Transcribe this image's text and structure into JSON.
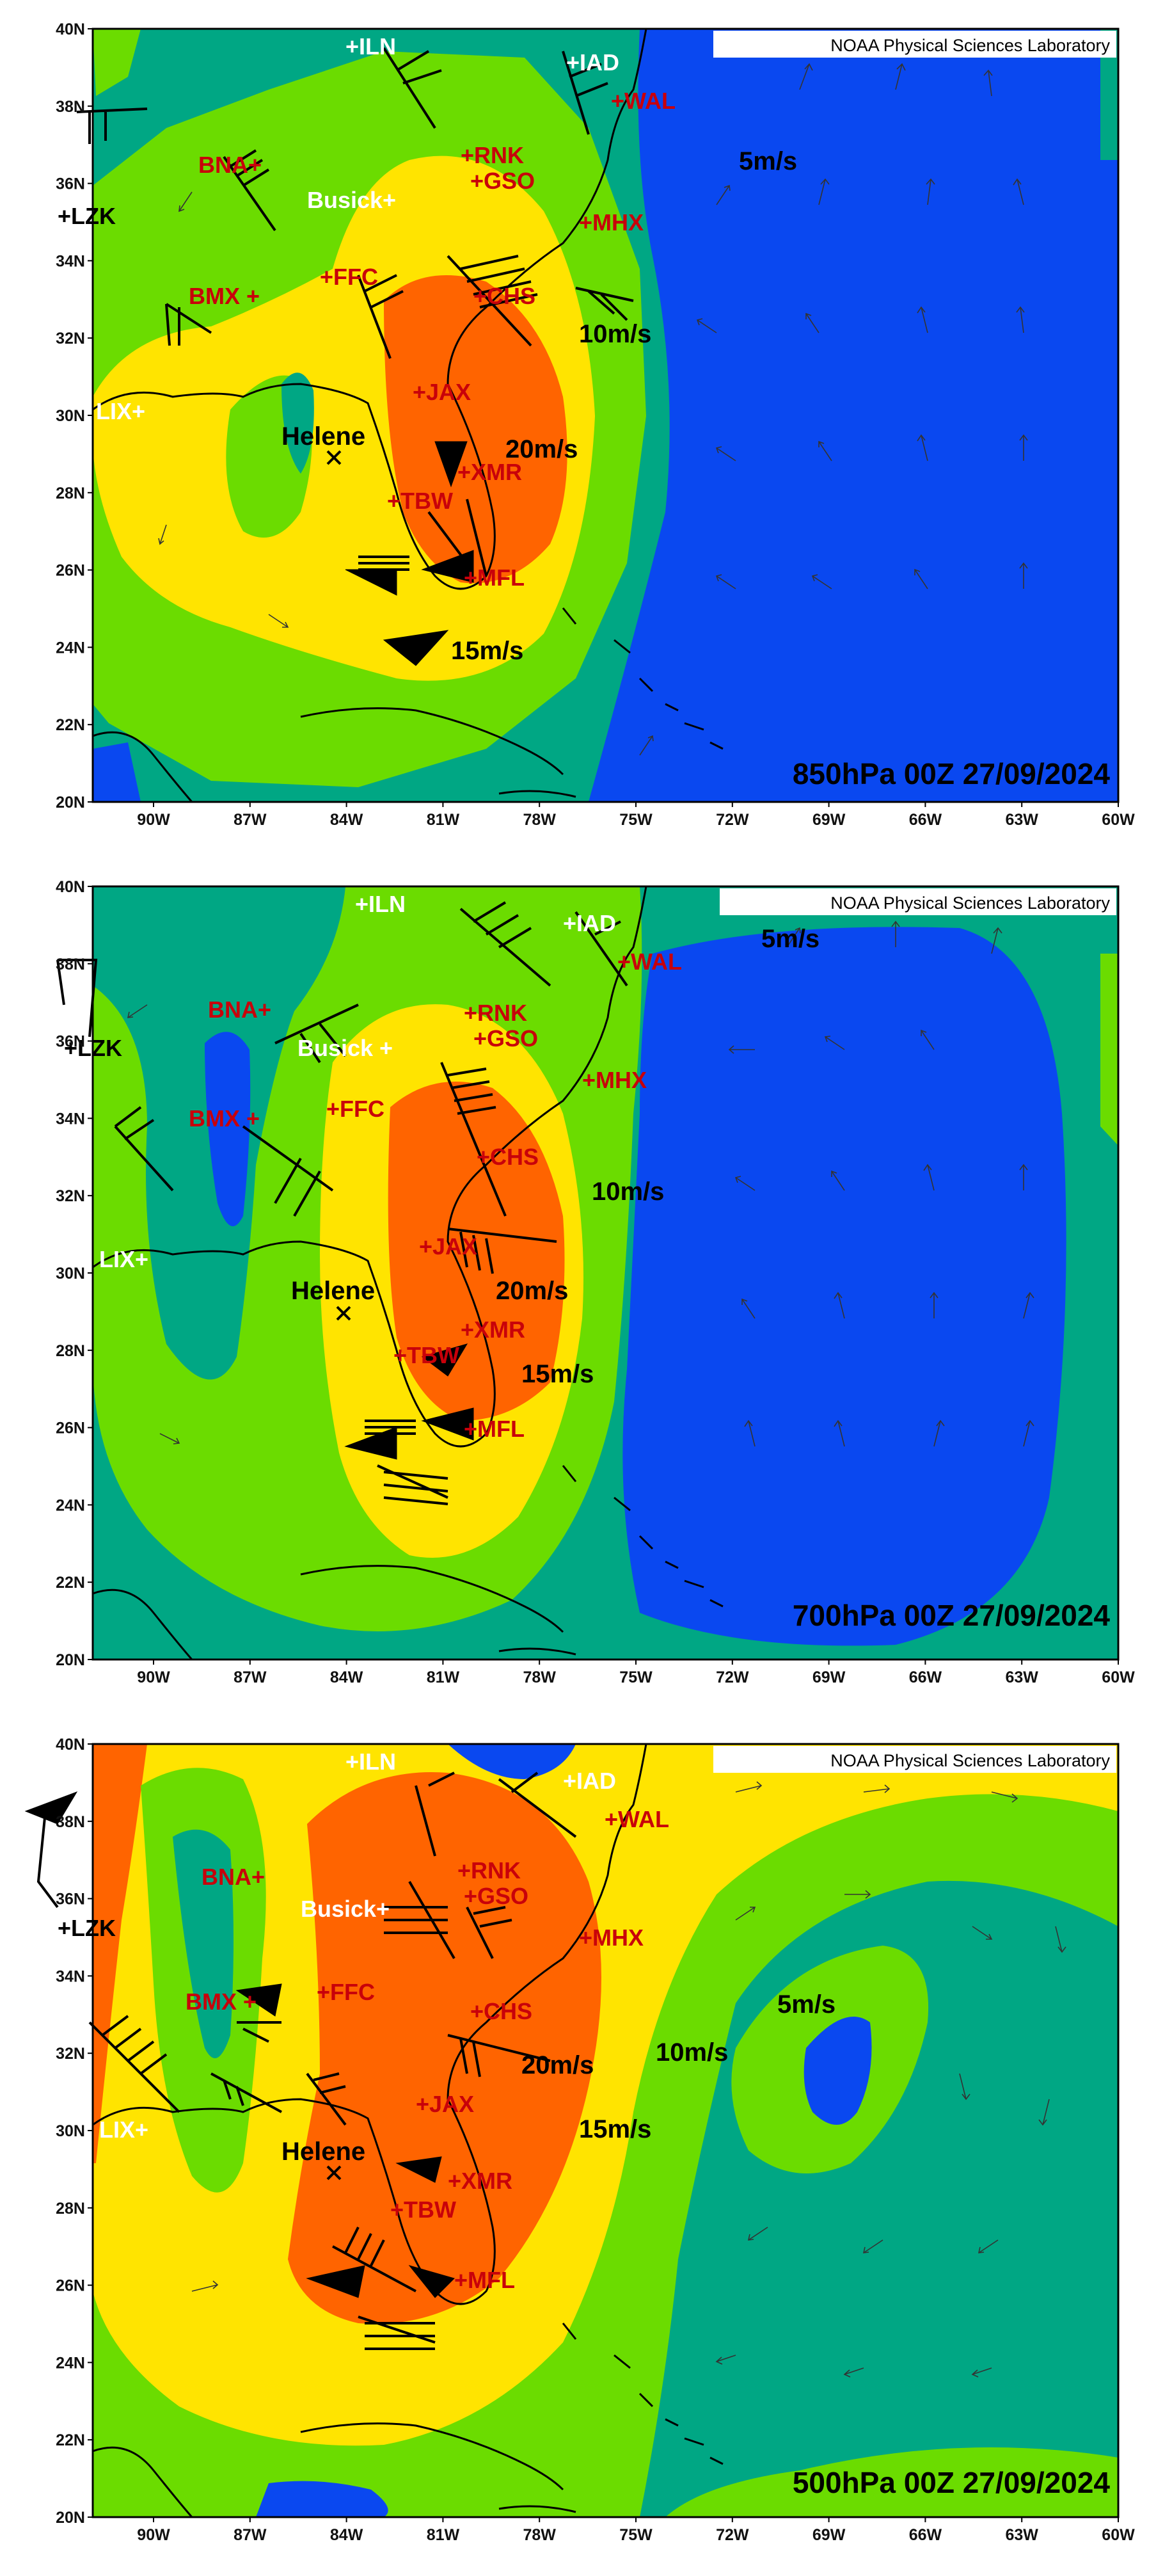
{
  "credit": "NOAA Physical Sciences Laboratory",
  "colors": {
    "lt5": "#0a48f0",
    "c5_10": "#00a784",
    "c10_15": "#6bdc00",
    "c15_20": "#ffe400",
    "c20_25": "#ff6400",
    "dark_station": "#000000",
    "light_station": "#ffffff",
    "upper_station": "#c8000a"
  },
  "lon_ticks": [
    "90W",
    "87W",
    "84W",
    "81W",
    "78W",
    "75W",
    "72W",
    "69W",
    "66W",
    "63W",
    "60W"
  ],
  "lat_ticks": [
    "40N",
    "38N",
    "36N",
    "34N",
    "32N",
    "30N",
    "28N",
    "26N",
    "24N",
    "22N",
    "20N"
  ],
  "panels": [
    {
      "title": "850hPa 00Z 27/09/2024",
      "speed_labels": [
        "5m/s",
        "10m/s",
        "20m/s",
        "15m/s"
      ],
      "storm": "Helene",
      "stations": {
        "ILN": "+ILN",
        "IAD": "+IAD",
        "WAL": "+WAL",
        "RNK": "+RNK",
        "GSO": "+GSO",
        "MHX": "+MHX",
        "BNA": "BNA+",
        "LZK": "+LZK",
        "Busick": "Busick+",
        "BMX": "BMX +",
        "FFC": "+FFC",
        "CHS": "+CHS",
        "JAX": "+JAX",
        "LIX": "LIX+",
        "XMR": "+XMR",
        "TBW": "+TBW",
        "MFL": "+MFL"
      }
    },
    {
      "title": "700hPa 00Z 27/09/2024",
      "speed_labels": [
        "5m/s",
        "10m/s",
        "20m/s",
        "15m/s"
      ],
      "storm": "Helene",
      "stations": {
        "ILN": "+ILN",
        "IAD": "+IAD",
        "WAL": "+WAL",
        "RNK": "+RNK",
        "GSO": "+GSO",
        "MHX": "+MHX",
        "BNA": "BNA+",
        "LZK": "+LZK",
        "Busick": "Busick +",
        "BMX": "BMX +",
        "FFC": "+FFC",
        "CHS": "+CHS",
        "JAX": "+JAX",
        "LIX": "LIX+",
        "XMR": "+XMR",
        "TBW": "+TBW",
        "MFL": "+MFL"
      }
    },
    {
      "title": "500hPa 00Z 27/09/2024",
      "speed_labels": [
        "5m/s",
        "10m/s",
        "20m/s",
        "15m/s"
      ],
      "storm": "Helene",
      "stations": {
        "ILN": "+ILN",
        "IAD": "+IAD",
        "WAL": "+WAL",
        "RNK": "+RNK",
        "GSO": "+GSO",
        "MHX": "+MHX",
        "BNA": "BNA+",
        "LZK": "+LZK",
        "Busick": "Busick+",
        "BMX": "BMX +",
        "FFC": "+FFC",
        "CHS": "+CHS",
        "JAX": "+JAX",
        "LIX": "LIX+",
        "XMR": "+XMR",
        "TBW": "+TBW",
        "MFL": "+MFL"
      }
    }
  ]
}
